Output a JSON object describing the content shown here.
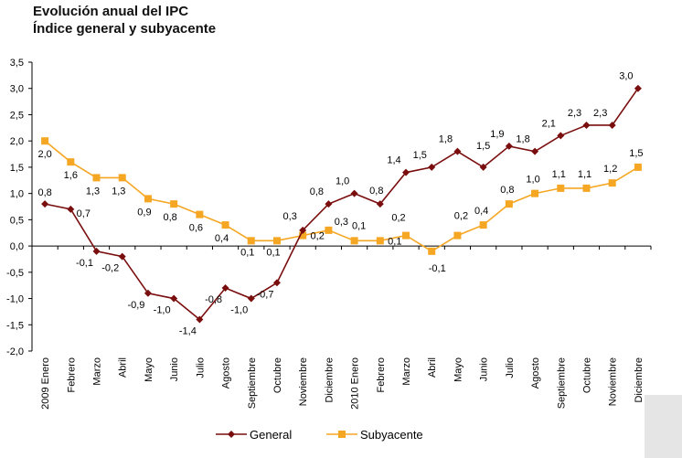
{
  "title": "Evolución anual del IPC",
  "subtitle": "Índice general y subyacente",
  "colors": {
    "general": "#7a0e0e",
    "subyacente": "#f5a623",
    "axis": "#000000"
  },
  "chart_data": {
    "type": "line",
    "title": "Evolución anual del IPC",
    "subtitle": "Índice general y subyacente",
    "xlabel": "",
    "ylabel": "",
    "ylim": [
      -2.0,
      3.5
    ],
    "yticks": [
      "-2,0",
      "-1,5",
      "-1,0",
      "-0,5",
      "0,0",
      "0,5",
      "1,0",
      "1,5",
      "2,0",
      "2,5",
      "3,0",
      "3,5"
    ],
    "categories": [
      "2009 Enero",
      "Febrero",
      "Marzo",
      "Abril",
      "Mayo",
      "Junio",
      "Julio",
      "Agosto",
      "Septiembre",
      "Octubre",
      "Noviembre",
      "Diciembre",
      "2010 Enero",
      "Febrero",
      "Marzo",
      "Abril",
      "Mayo",
      "Junio",
      "Julio",
      "Agosto",
      "Septiembre",
      "Octubre",
      "Noviembre",
      "Diciembre"
    ],
    "legend_position": "bottom",
    "grid": false,
    "series": [
      {
        "name": "General",
        "marker": "diamond",
        "values": [
          0.8,
          0.7,
          -0.1,
          -0.2,
          -0.9,
          -1.0,
          -1.4,
          -0.8,
          -1.0,
          -0.7,
          0.3,
          0.8,
          1.0,
          0.8,
          1.4,
          1.5,
          1.8,
          1.5,
          1.9,
          1.8,
          2.1,
          2.3,
          2.3,
          3.0
        ],
        "labels": [
          "0,8",
          "0,7",
          "-0,1",
          "-0,2",
          "-0,9",
          "-1,0",
          "-1,4",
          "-0,8",
          "-1,0",
          "-0,7",
          "0,3",
          "0,8",
          "1,0",
          "0,8",
          "1,4",
          "1,5",
          "1,8",
          "1,5",
          "1,9",
          "1,8",
          "2,1",
          "2,3",
          "2,3",
          "3,0"
        ]
      },
      {
        "name": "Subyacente",
        "marker": "square",
        "values": [
          2.0,
          1.6,
          1.3,
          1.3,
          0.9,
          0.8,
          0.6,
          0.4,
          0.1,
          0.1,
          0.2,
          0.3,
          0.1,
          0.1,
          0.2,
          -0.1,
          0.2,
          0.4,
          0.8,
          1.0,
          1.1,
          1.1,
          1.2,
          1.5
        ],
        "labels": [
          "2,0",
          "1,6",
          "1,3",
          "1,3",
          "0,9",
          "0,8",
          "0,6",
          "0,4",
          "0,1",
          "0,1",
          "0,2",
          "0,3",
          "0,1",
          "0,1",
          "0,2",
          "-0,1",
          "0,2",
          "0,4",
          "0,8",
          "1,0",
          "1,1",
          "1,1",
          "1,2",
          "1,5"
        ]
      }
    ]
  }
}
